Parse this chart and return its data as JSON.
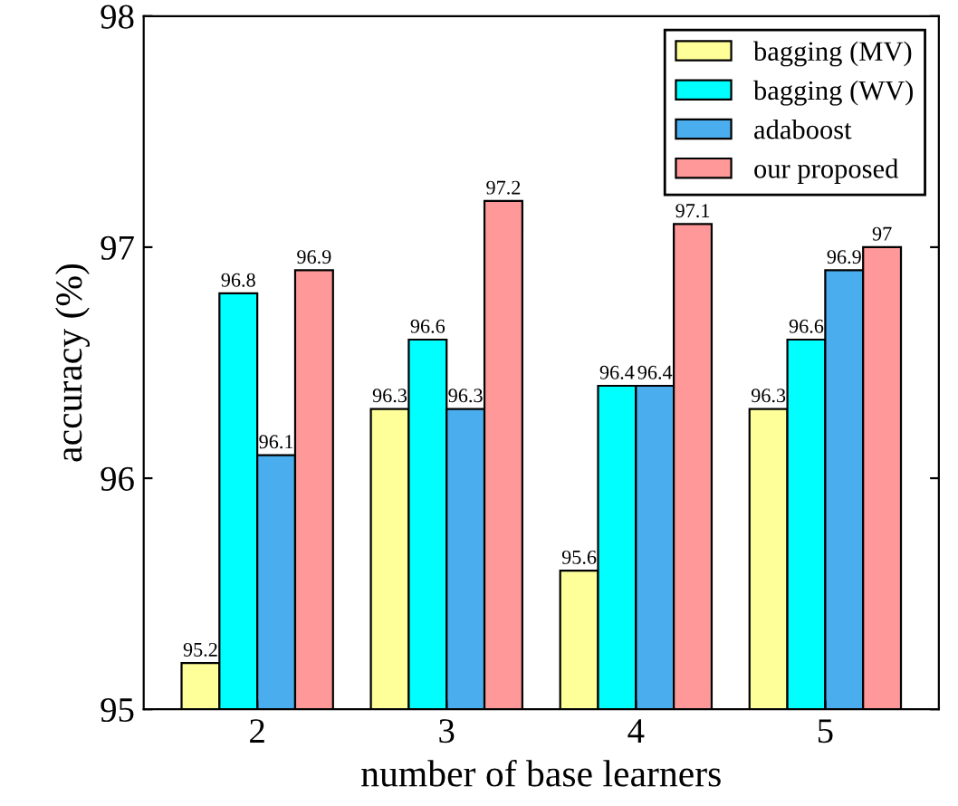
{
  "chart_data": {
    "type": "bar",
    "xlabel": "number of base learners",
    "ylabel": "accuracy (%)",
    "categories": [
      "2",
      "3",
      "4",
      "5"
    ],
    "series": [
      {
        "name": "bagging (MV)",
        "color": "#ffff99",
        "values": [
          95.2,
          96.3,
          95.6,
          96.3
        ]
      },
      {
        "name": "bagging (WV)",
        "color": "#00ffff",
        "values": [
          96.8,
          96.6,
          96.4,
          96.6
        ]
      },
      {
        "name": "adaboost",
        "color": "#4aaeee",
        "values": [
          96.1,
          96.3,
          96.4,
          96.9
        ]
      },
      {
        "name": "our proposed",
        "color": "#ff9999",
        "values": [
          96.9,
          97.2,
          97.1,
          97
        ]
      }
    ],
    "ylim": [
      95,
      98
    ],
    "yticks": [
      95,
      96,
      97,
      98
    ],
    "data_labels": true,
    "legend": "top right",
    "grid": false
  }
}
